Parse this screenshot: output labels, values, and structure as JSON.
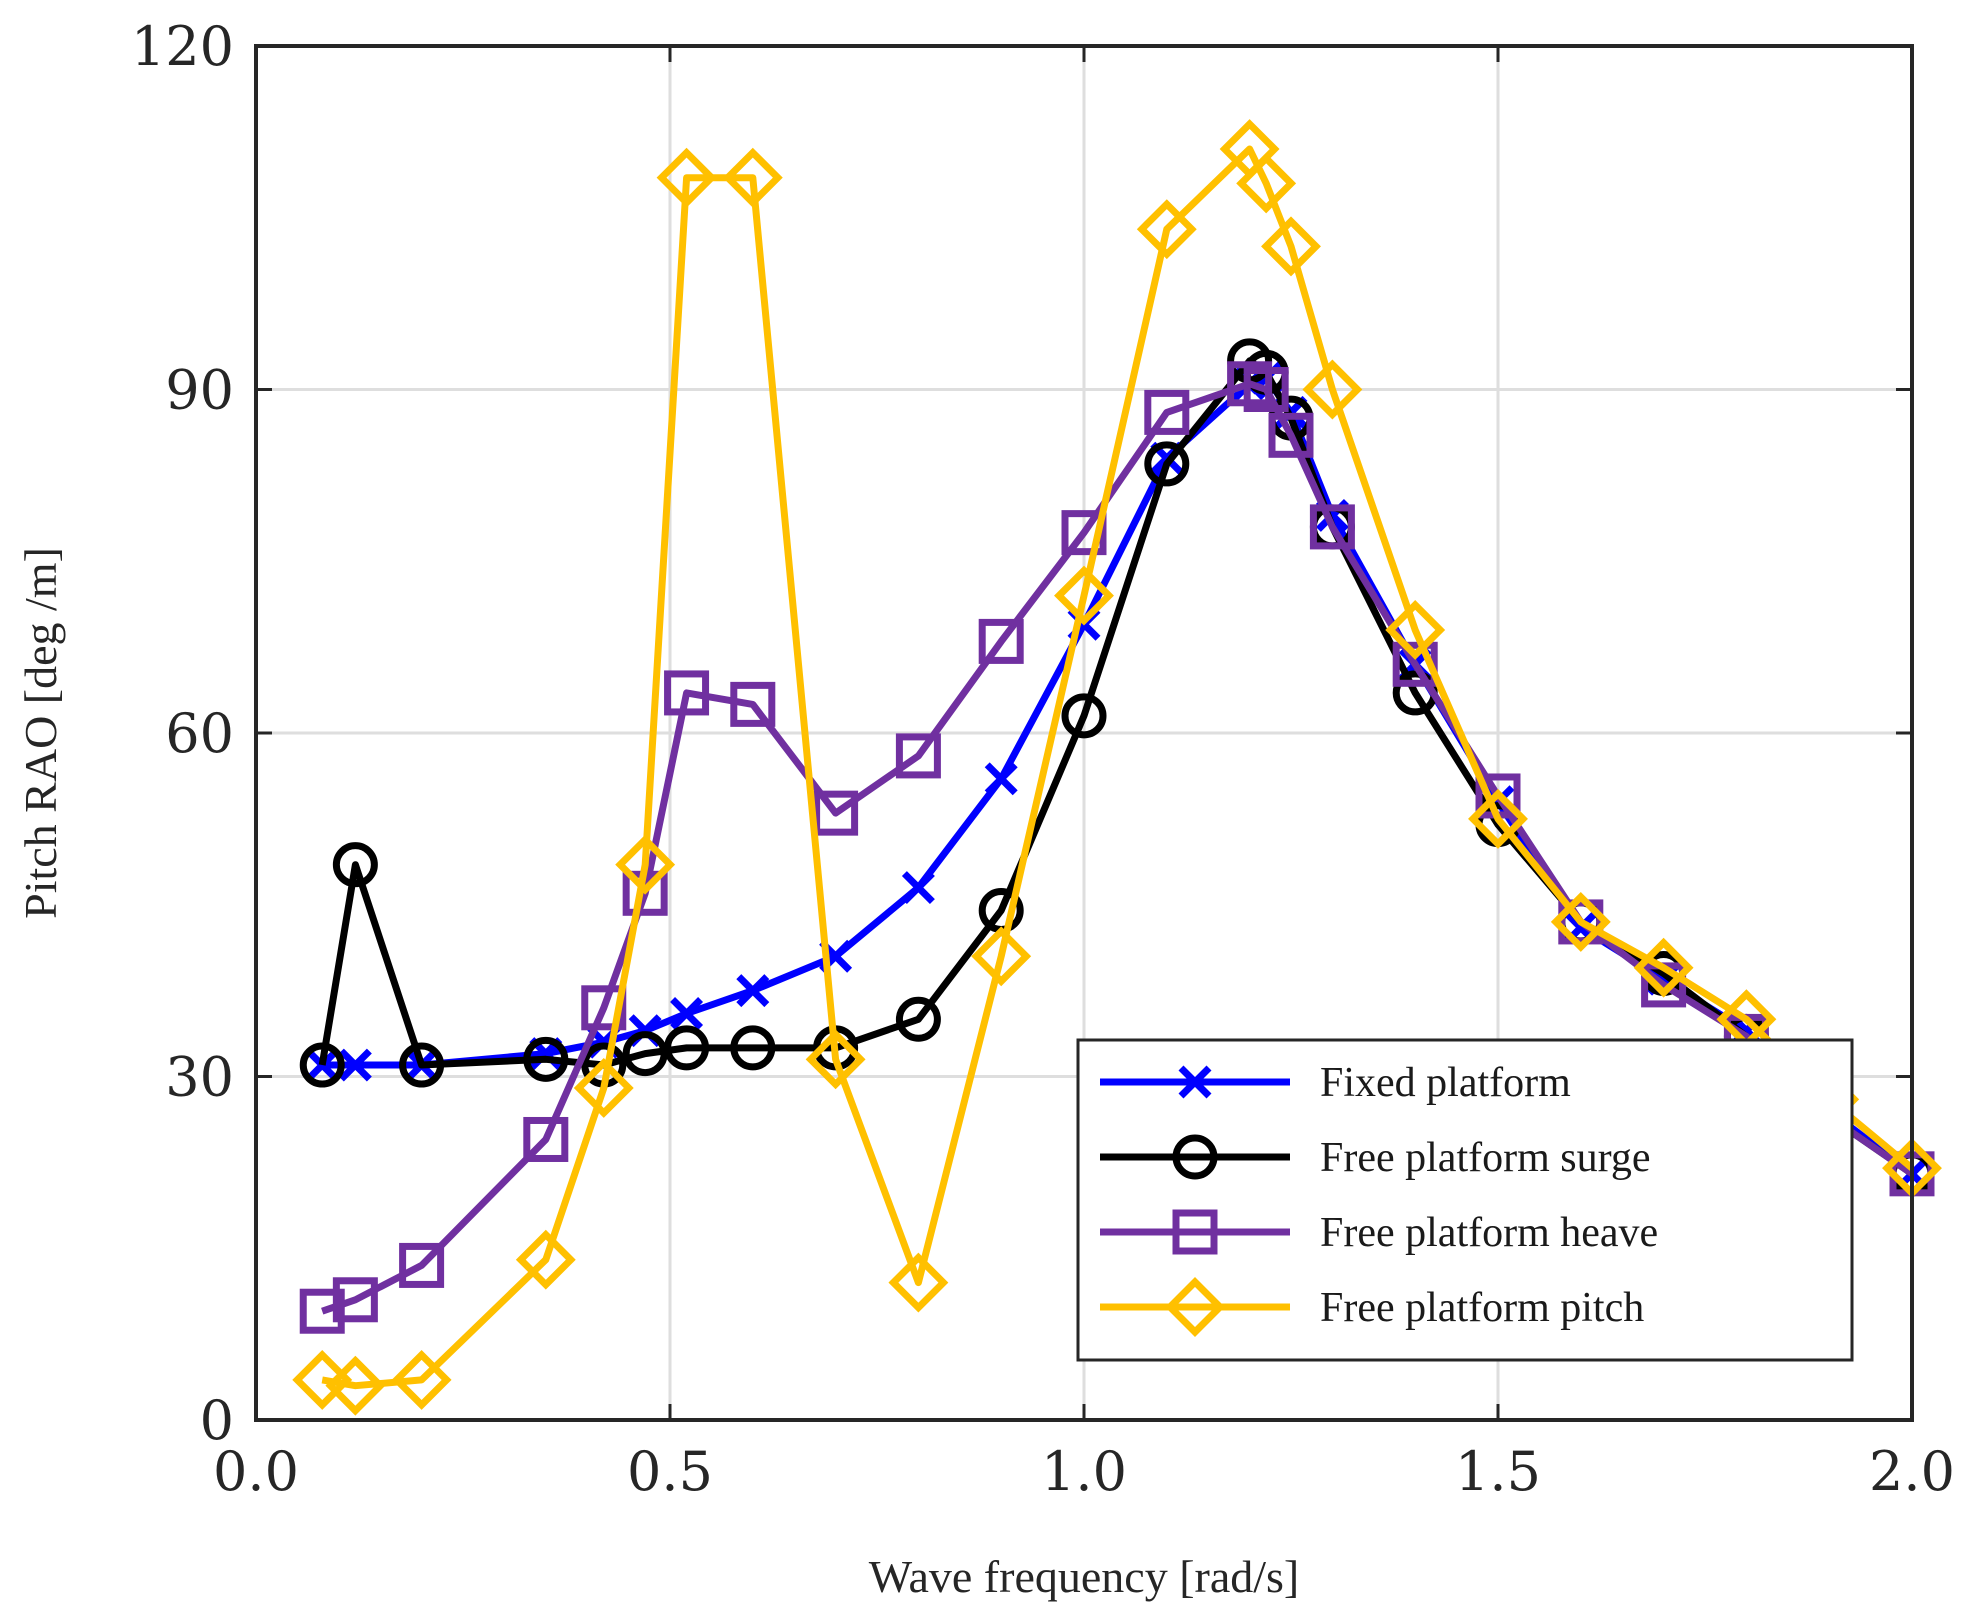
{
  "chart_data": {
    "type": "line",
    "xlabel": "Wave frequency [rad/s]",
    "ylabel": "Pitch RAO [deg /m]",
    "xlim": [
      0,
      2
    ],
    "ylim": [
      0,
      120
    ],
    "xticks": [
      0,
      0.5,
      1,
      1.5,
      2
    ],
    "xtick_labels": [
      "0.0",
      "0.5",
      "1.0",
      "1.5",
      "2.0"
    ],
    "yticks": [
      0,
      30,
      60,
      90,
      120
    ],
    "ytick_labels": [
      "0",
      "30",
      "60",
      "90",
      "120"
    ],
    "grid": true,
    "legend_position": "bottom-right",
    "series": [
      {
        "name": "Fixed platform",
        "color": "#0000ff",
        "marker": "x",
        "x": [
          0.08,
          0.12,
          0.2,
          0.35,
          0.42,
          0.47,
          0.52,
          0.6,
          0.7,
          0.8,
          0.9,
          1.0,
          1.1,
          1.2,
          1.22,
          1.25,
          1.3,
          1.4,
          1.5,
          1.6,
          1.7,
          1.8,
          1.9,
          2.0
        ],
        "y": [
          31,
          31,
          31,
          32,
          33,
          34,
          35.5,
          37.5,
          40.5,
          46.5,
          56,
          69.5,
          84,
          90.5,
          91,
          88,
          79,
          66,
          54,
          43,
          38.5,
          34,
          27,
          21.5
        ]
      },
      {
        "name": "Free platform surge",
        "color": "#000000",
        "marker": "o",
        "x": [
          0.08,
          0.12,
          0.2,
          0.35,
          0.42,
          0.47,
          0.52,
          0.6,
          0.7,
          0.8,
          0.9,
          1.0,
          1.1,
          1.2,
          1.22,
          1.25,
          1.3,
          1.4,
          1.5,
          1.6,
          1.7,
          1.8,
          1.9,
          2.0
        ],
        "y": [
          31,
          48.5,
          31,
          31.5,
          31,
          32,
          32.5,
          32.5,
          32.5,
          35,
          44.5,
          61.5,
          83.5,
          92.5,
          91.5,
          87.5,
          78,
          63.5,
          52,
          43.5,
          39,
          33.5,
          26.5,
          21.5
        ]
      },
      {
        "name": "Free platform heave",
        "color": "#7030a0",
        "marker": "square",
        "x": [
          0.08,
          0.12,
          0.2,
          0.35,
          0.42,
          0.47,
          0.52,
          0.6,
          0.7,
          0.8,
          0.9,
          1.0,
          1.1,
          1.2,
          1.22,
          1.25,
          1.3,
          1.4,
          1.5,
          1.6,
          1.7,
          1.8,
          1.9,
          2.0
        ],
        "y": [
          9.5,
          10.5,
          13.5,
          24.5,
          36,
          46,
          63.5,
          62.5,
          53,
          58,
          68,
          77.5,
          88,
          90.5,
          90,
          86,
          78,
          66,
          54.5,
          43.5,
          38,
          33.5,
          26.5,
          21.5
        ]
      },
      {
        "name": "Free platform pitch",
        "color": "#ffc000",
        "marker": "diamond",
        "x": [
          0.08,
          0.12,
          0.2,
          0.35,
          0.42,
          0.47,
          0.52,
          0.6,
          0.7,
          0.8,
          0.9,
          1.0,
          1.1,
          1.2,
          1.22,
          1.25,
          1.3,
          1.4,
          1.5,
          1.6,
          1.7,
          1.8,
          1.9,
          2.0
        ],
        "y": [
          3.5,
          3,
          3.5,
          14,
          29,
          48.5,
          108.5,
          108.5,
          31.5,
          12,
          40.5,
          72,
          104,
          111,
          108,
          102.5,
          90,
          69,
          52.5,
          43.5,
          39.5,
          35,
          28,
          22
        ]
      }
    ]
  }
}
